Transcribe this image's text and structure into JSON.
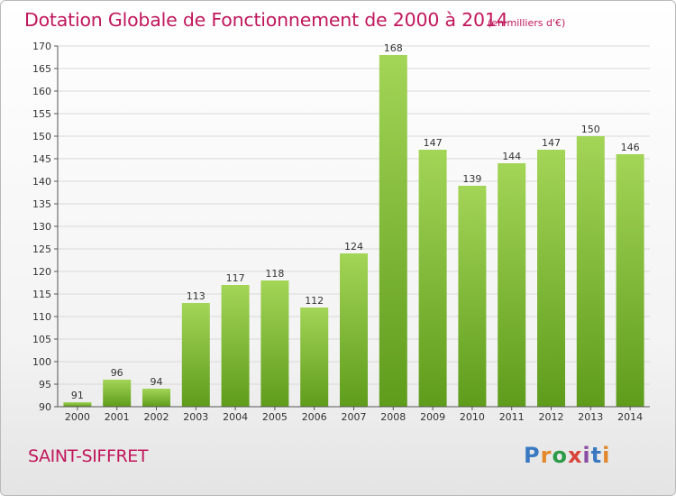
{
  "header": {
    "title": "Dotation Globale de Fonctionnement de 2000 à 2014",
    "unit": "(en milliers d'€)"
  },
  "footer": {
    "commune": "SAINT-SIFFRET",
    "logo_letters": [
      "P",
      "r",
      "o",
      "x",
      "i",
      "t",
      "i"
    ]
  },
  "colors": {
    "title": "#c0175c",
    "bar_light": "#a3d557",
    "bar_dark": "#5f9c1c",
    "grid": "#d9d9d9"
  },
  "chart_data": {
    "type": "bar",
    "title": "Dotation Globale de Fonctionnement de 2000 à 2014",
    "subtitle": "(en milliers d'€)",
    "xlabel": "",
    "ylabel": "",
    "categories": [
      "2000",
      "2001",
      "2002",
      "2003",
      "2004",
      "2005",
      "2006",
      "2007",
      "2008",
      "2009",
      "2010",
      "2011",
      "2012",
      "2013",
      "2014"
    ],
    "values": [
      91,
      96,
      94,
      113,
      117,
      118,
      112,
      124,
      168,
      147,
      139,
      144,
      147,
      150,
      146
    ],
    "ylim": [
      90,
      170
    ],
    "yticks": [
      90,
      95,
      100,
      105,
      110,
      115,
      120,
      125,
      130,
      135,
      140,
      145,
      150,
      155,
      160,
      165,
      170
    ],
    "grid": true,
    "legend": "none"
  }
}
